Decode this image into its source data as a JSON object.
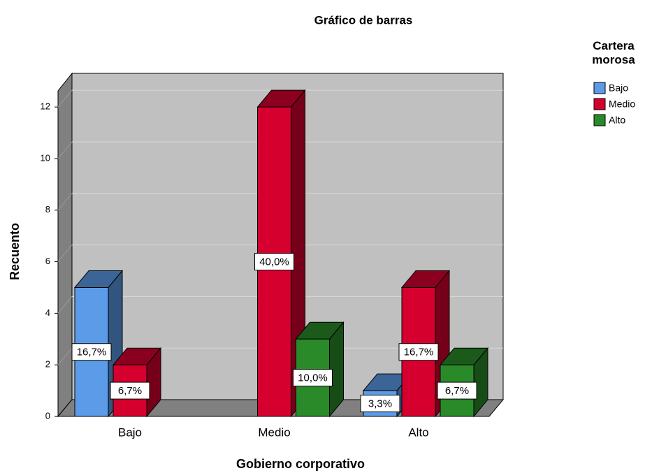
{
  "chart_data": {
    "type": "bar3d",
    "title": "Gráfico de barras",
    "x_label": "Gobierno corporativo",
    "y_label": "Recuento",
    "legend_title": "Cartera morosa",
    "categories": [
      "Bajo",
      "Medio",
      "Alto"
    ],
    "series": [
      {
        "name": "Bajo",
        "color": "#5b9be8",
        "values": [
          5,
          null,
          1
        ],
        "value_labels": [
          "16,7%",
          null,
          "3,3%"
        ]
      },
      {
        "name": "Medio",
        "color": "#d6002f",
        "values": [
          2,
          12,
          5
        ],
        "value_labels": [
          "6,7%",
          "40,0%",
          "16,7%"
        ]
      },
      {
        "name": "Alto",
        "color": "#2a8a2a",
        "values": [
          null,
          3,
          2
        ],
        "value_labels": [
          null,
          "10,0%",
          "6,7%"
        ]
      }
    ],
    "ylim": [
      0,
      12.6
    ],
    "yticks": [
      0,
      2,
      4,
      6,
      8,
      10,
      12
    ],
    "grid": true,
    "legend": "right"
  }
}
